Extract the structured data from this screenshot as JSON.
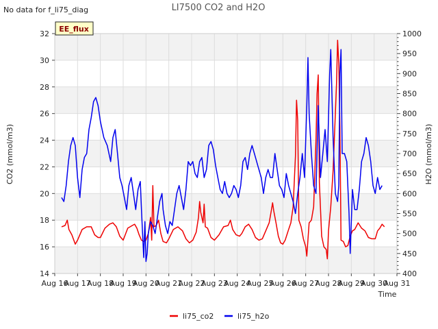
{
  "header": {
    "title": "LI7500 CO2 and H2O",
    "note": "No data for f_li75_diag"
  },
  "badge": {
    "label": "EE_flux"
  },
  "chart_data": {
    "type": "line",
    "title": "LI7500 CO2 and H2O",
    "xlabel": "Time",
    "ylabel": "CO2 (mmol/m3)",
    "y2label": "H2O (mmol/m3)",
    "xlim": [
      16,
      31
    ],
    "ylim": [
      14,
      32
    ],
    "y2lim": [
      400,
      1000
    ],
    "x_tick_labels": [
      "Aug 16",
      "Aug 17",
      "Aug 18",
      "Aug 19",
      "Aug 20",
      "Aug 21",
      "Aug 22",
      "Aug 23",
      "Aug 24",
      "Aug 25",
      "Aug 26",
      "Aug 27",
      "Aug 28",
      "Aug 29",
      "Aug 30",
      "Aug 31"
    ],
    "y_ticks": [
      14,
      16,
      18,
      20,
      22,
      24,
      26,
      28,
      30,
      32
    ],
    "y2_ticks": [
      400,
      450,
      500,
      550,
      600,
      650,
      700,
      750,
      800,
      850,
      900,
      950,
      1000
    ],
    "grid": true,
    "legend_position": "bottom",
    "series": [
      {
        "name": "li75_co2",
        "axis": "left",
        "color": "#ee0000",
        "points": [
          [
            16.3,
            17.5
          ],
          [
            16.45,
            17.6
          ],
          [
            16.55,
            18.0
          ],
          [
            16.62,
            17.3
          ],
          [
            16.75,
            16.9
          ],
          [
            16.9,
            16.2
          ],
          [
            17.0,
            16.5
          ],
          [
            17.2,
            17.3
          ],
          [
            17.4,
            17.5
          ],
          [
            17.6,
            17.5
          ],
          [
            17.75,
            16.9
          ],
          [
            17.9,
            16.7
          ],
          [
            18.0,
            16.7
          ],
          [
            18.2,
            17.4
          ],
          [
            18.4,
            17.7
          ],
          [
            18.55,
            17.8
          ],
          [
            18.7,
            17.5
          ],
          [
            18.85,
            16.8
          ],
          [
            19.0,
            16.5
          ],
          [
            19.2,
            17.4
          ],
          [
            19.4,
            17.6
          ],
          [
            19.5,
            17.7
          ],
          [
            19.6,
            17.4
          ],
          [
            19.7,
            16.9
          ],
          [
            19.8,
            16.5
          ],
          [
            19.9,
            16.4
          ],
          [
            20.0,
            16.5
          ],
          [
            20.1,
            17.0
          ],
          [
            20.2,
            18.2
          ],
          [
            20.25,
            16.5
          ],
          [
            20.3,
            20.6
          ],
          [
            20.35,
            17.5
          ],
          [
            20.45,
            17.6
          ],
          [
            20.55,
            18.0
          ],
          [
            20.65,
            17.0
          ],
          [
            20.75,
            16.4
          ],
          [
            20.9,
            16.3
          ],
          [
            21.0,
            16.6
          ],
          [
            21.2,
            17.3
          ],
          [
            21.4,
            17.5
          ],
          [
            21.6,
            17.2
          ],
          [
            21.75,
            16.6
          ],
          [
            21.9,
            16.3
          ],
          [
            22.05,
            16.5
          ],
          [
            22.2,
            17.1
          ],
          [
            22.3,
            18.2
          ],
          [
            22.35,
            19.4
          ],
          [
            22.4,
            18.6
          ],
          [
            22.5,
            17.8
          ],
          [
            22.55,
            19.2
          ],
          [
            22.6,
            17.5
          ],
          [
            22.7,
            17.4
          ],
          [
            22.85,
            16.7
          ],
          [
            23.0,
            16.5
          ],
          [
            23.2,
            16.9
          ],
          [
            23.4,
            17.5
          ],
          [
            23.6,
            17.6
          ],
          [
            23.7,
            18.0
          ],
          [
            23.8,
            17.3
          ],
          [
            23.95,
            16.9
          ],
          [
            24.1,
            16.8
          ],
          [
            24.2,
            17.0
          ],
          [
            24.35,
            17.5
          ],
          [
            24.5,
            17.7
          ],
          [
            24.65,
            17.3
          ],
          [
            24.8,
            16.7
          ],
          [
            24.95,
            16.5
          ],
          [
            25.1,
            16.6
          ],
          [
            25.25,
            17.2
          ],
          [
            25.4,
            17.8
          ],
          [
            25.5,
            18.8
          ],
          [
            25.55,
            19.3
          ],
          [
            25.6,
            18.7
          ],
          [
            25.7,
            17.8
          ],
          [
            25.8,
            16.8
          ],
          [
            25.9,
            16.3
          ],
          [
            26.0,
            16.2
          ],
          [
            26.1,
            16.5
          ],
          [
            26.25,
            17.3
          ],
          [
            26.35,
            17.8
          ],
          [
            26.45,
            19.0
          ],
          [
            26.55,
            22.8
          ],
          [
            26.6,
            27.0
          ],
          [
            26.65,
            25.5
          ],
          [
            26.7,
            18.0
          ],
          [
            26.8,
            17.5
          ],
          [
            26.9,
            16.6
          ],
          [
            27.0,
            16.0
          ],
          [
            27.05,
            15.3
          ],
          [
            27.15,
            17.8
          ],
          [
            27.25,
            18.0
          ],
          [
            27.35,
            19.0
          ],
          [
            27.45,
            24.0
          ],
          [
            27.5,
            27.5
          ],
          [
            27.55,
            28.9
          ],
          [
            27.6,
            20.8
          ],
          [
            27.7,
            16.8
          ],
          [
            27.8,
            16.0
          ],
          [
            27.9,
            15.8
          ],
          [
            27.95,
            15.1
          ],
          [
            28.0,
            17.2
          ],
          [
            28.1,
            19.0
          ],
          [
            28.2,
            21.7
          ],
          [
            28.3,
            26.0
          ],
          [
            28.35,
            28.2
          ],
          [
            28.4,
            31.5
          ],
          [
            28.45,
            29.8
          ],
          [
            28.5,
            25.0
          ],
          [
            28.55,
            16.5
          ],
          [
            28.65,
            16.4
          ],
          [
            28.75,
            16.0
          ],
          [
            28.85,
            16.1
          ],
          [
            28.95,
            16.8
          ],
          [
            29.05,
            17.2
          ],
          [
            29.15,
            17.3
          ],
          [
            29.3,
            17.8
          ],
          [
            29.45,
            17.4
          ],
          [
            29.6,
            17.2
          ],
          [
            29.75,
            16.7
          ],
          [
            29.9,
            16.6
          ],
          [
            30.05,
            16.6
          ],
          [
            30.15,
            17.2
          ],
          [
            30.25,
            17.4
          ],
          [
            30.35,
            17.7
          ],
          [
            30.45,
            17.5
          ]
        ]
      },
      {
        "name": "li75_h2o",
        "axis": "right",
        "color": "#0000ee",
        "points": [
          [
            16.3,
            590
          ],
          [
            16.4,
            580
          ],
          [
            16.5,
            620
          ],
          [
            16.6,
            680
          ],
          [
            16.7,
            720
          ],
          [
            16.8,
            740
          ],
          [
            16.9,
            720
          ],
          [
            17.0,
            640
          ],
          [
            17.1,
            590
          ],
          [
            17.2,
            660
          ],
          [
            17.3,
            690
          ],
          [
            17.4,
            700
          ],
          [
            17.5,
            760
          ],
          [
            17.6,
            790
          ],
          [
            17.7,
            830
          ],
          [
            17.8,
            840
          ],
          [
            17.9,
            820
          ],
          [
            18.0,
            780
          ],
          [
            18.15,
            740
          ],
          [
            18.3,
            720
          ],
          [
            18.45,
            680
          ],
          [
            18.55,
            740
          ],
          [
            18.65,
            760
          ],
          [
            18.75,
            700
          ],
          [
            18.85,
            640
          ],
          [
            18.95,
            620
          ],
          [
            19.05,
            590
          ],
          [
            19.15,
            560
          ],
          [
            19.25,
            620
          ],
          [
            19.35,
            640
          ],
          [
            19.45,
            600
          ],
          [
            19.55,
            560
          ],
          [
            19.65,
            610
          ],
          [
            19.75,
            630
          ],
          [
            19.8,
            560
          ],
          [
            19.85,
            500
          ],
          [
            19.9,
            440
          ],
          [
            19.95,
            530
          ],
          [
            20.0,
            430
          ],
          [
            20.05,
            450
          ],
          [
            20.1,
            500
          ],
          [
            20.2,
            530
          ],
          [
            20.3,
            520
          ],
          [
            20.4,
            500
          ],
          [
            20.5,
            540
          ],
          [
            20.6,
            580
          ],
          [
            20.7,
            600
          ],
          [
            20.75,
            560
          ],
          [
            20.85,
            520
          ],
          [
            20.95,
            500
          ],
          [
            21.05,
            530
          ],
          [
            21.15,
            520
          ],
          [
            21.25,
            560
          ],
          [
            21.35,
            600
          ],
          [
            21.45,
            620
          ],
          [
            21.55,
            590
          ],
          [
            21.65,
            560
          ],
          [
            21.75,
            610
          ],
          [
            21.85,
            680
          ],
          [
            21.95,
            670
          ],
          [
            22.05,
            680
          ],
          [
            22.15,
            650
          ],
          [
            22.25,
            640
          ],
          [
            22.35,
            680
          ],
          [
            22.45,
            690
          ],
          [
            22.55,
            640
          ],
          [
            22.65,
            660
          ],
          [
            22.75,
            720
          ],
          [
            22.85,
            730
          ],
          [
            22.95,
            710
          ],
          [
            23.05,
            670
          ],
          [
            23.15,
            640
          ],
          [
            23.25,
            610
          ],
          [
            23.35,
            600
          ],
          [
            23.45,
            630
          ],
          [
            23.55,
            600
          ],
          [
            23.65,
            590
          ],
          [
            23.75,
            600
          ],
          [
            23.85,
            620
          ],
          [
            23.95,
            610
          ],
          [
            24.05,
            590
          ],
          [
            24.15,
            620
          ],
          [
            24.25,
            680
          ],
          [
            24.35,
            690
          ],
          [
            24.45,
            660
          ],
          [
            24.55,
            700
          ],
          [
            24.65,
            720
          ],
          [
            24.75,
            700
          ],
          [
            24.85,
            680
          ],
          [
            24.95,
            660
          ],
          [
            25.05,
            640
          ],
          [
            25.15,
            600
          ],
          [
            25.25,
            640
          ],
          [
            25.35,
            660
          ],
          [
            25.45,
            640
          ],
          [
            25.55,
            640
          ],
          [
            25.65,
            700
          ],
          [
            25.75,
            660
          ],
          [
            25.85,
            620
          ],
          [
            25.95,
            610
          ],
          [
            26.05,
            590
          ],
          [
            26.15,
            650
          ],
          [
            26.25,
            620
          ],
          [
            26.35,
            600
          ],
          [
            26.45,
            580
          ],
          [
            26.55,
            550
          ],
          [
            26.65,
            600
          ],
          [
            26.75,
            640
          ],
          [
            26.85,
            700
          ],
          [
            26.95,
            640
          ],
          [
            27.05,
            820
          ],
          [
            27.1,
            940
          ],
          [
            27.15,
            800
          ],
          [
            27.25,
            700
          ],
          [
            27.35,
            620
          ],
          [
            27.45,
            600
          ],
          [
            27.55,
            820
          ],
          [
            27.65,
            640
          ],
          [
            27.75,
            700
          ],
          [
            27.85,
            760
          ],
          [
            27.95,
            680
          ],
          [
            28.05,
            900
          ],
          [
            28.1,
            960
          ],
          [
            28.2,
            740
          ],
          [
            28.3,
            600
          ],
          [
            28.4,
            580
          ],
          [
            28.45,
            620
          ],
          [
            28.5,
            900
          ],
          [
            28.55,
            960
          ],
          [
            28.6,
            700
          ],
          [
            28.7,
            700
          ],
          [
            28.8,
            680
          ],
          [
            28.9,
            550
          ],
          [
            28.95,
            450
          ],
          [
            29.05,
            610
          ],
          [
            29.15,
            560
          ],
          [
            29.25,
            560
          ],
          [
            29.35,
            610
          ],
          [
            29.45,
            680
          ],
          [
            29.55,
            700
          ],
          [
            29.65,
            740
          ],
          [
            29.75,
            720
          ],
          [
            29.85,
            680
          ],
          [
            29.95,
            620
          ],
          [
            30.05,
            600
          ],
          [
            30.15,
            640
          ],
          [
            30.25,
            610
          ],
          [
            30.35,
            620
          ]
        ]
      }
    ]
  }
}
